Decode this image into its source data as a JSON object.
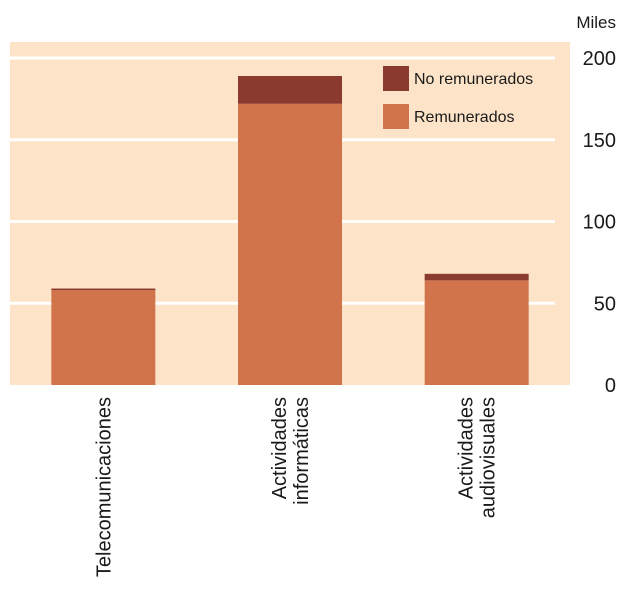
{
  "chart_data": {
    "type": "bar",
    "stacked": true,
    "unit_label": "Miles",
    "categories": [
      [
        "Telecomunicaciones"
      ],
      [
        "Actividades",
        "informáticas"
      ],
      [
        "Actividades",
        "audiovisuales"
      ]
    ],
    "series": [
      {
        "name": "Remunerados",
        "values": [
          58,
          172,
          64
        ],
        "color": "#d2744b"
      },
      {
        "name": "No remunerados",
        "values": [
          1,
          17,
          4
        ],
        "color": "#8b3a2e"
      }
    ],
    "ylim": [
      0,
      200
    ],
    "yticks": [
      0,
      50,
      100,
      150,
      200
    ],
    "grid": true,
    "legend": "top-right",
    "plot_background": "#fde4c8"
  }
}
